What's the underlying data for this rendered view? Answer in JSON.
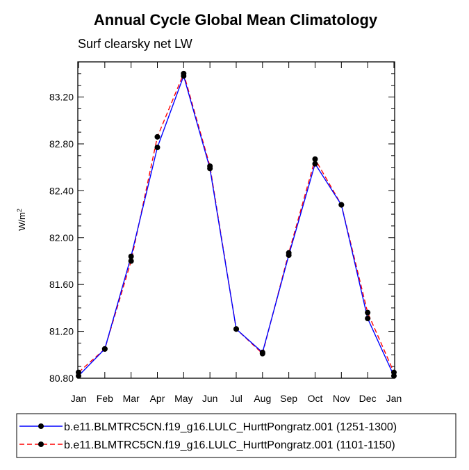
{
  "chart_data": {
    "type": "line",
    "title": "Annual Cycle Global Mean Climatology",
    "subtitle": "Surf clearsky net LW",
    "xlabel": "",
    "ylabel": "W/m",
    "ylabel_sup": "2",
    "categories": [
      "Jan",
      "Feb",
      "Mar",
      "Apr",
      "May",
      "Jun",
      "Jul",
      "Aug",
      "Sep",
      "Oct",
      "Nov",
      "Dec",
      "Jan"
    ],
    "ylim": [
      80.8,
      83.5
    ],
    "yticks": [
      "80.80",
      "81.20",
      "81.60",
      "82.00",
      "82.40",
      "82.80",
      "83.20"
    ],
    "ytick_values": [
      80.8,
      81.2,
      81.6,
      82.0,
      82.4,
      82.8,
      83.2
    ],
    "series": [
      {
        "name": "b.e11.BLMTRC5CN.f19_g16.LULC_HurttPongratz.001 (1251-1300)",
        "color": "#0000ff",
        "dash": "solid",
        "values": [
          80.82,
          81.05,
          81.84,
          82.77,
          83.38,
          82.59,
          81.22,
          81.02,
          81.85,
          82.63,
          82.28,
          81.31,
          80.82
        ]
      },
      {
        "name": "b.e11.BLMTRC5CN.f19_g16.LULC_HurttPongratz.001 (1101-1150)",
        "color": "#ff0000",
        "dash": "dashed",
        "values": [
          80.85,
          81.05,
          81.8,
          82.86,
          83.4,
          82.61,
          81.22,
          81.01,
          81.87,
          82.67,
          82.28,
          81.36,
          80.85
        ]
      }
    ]
  }
}
